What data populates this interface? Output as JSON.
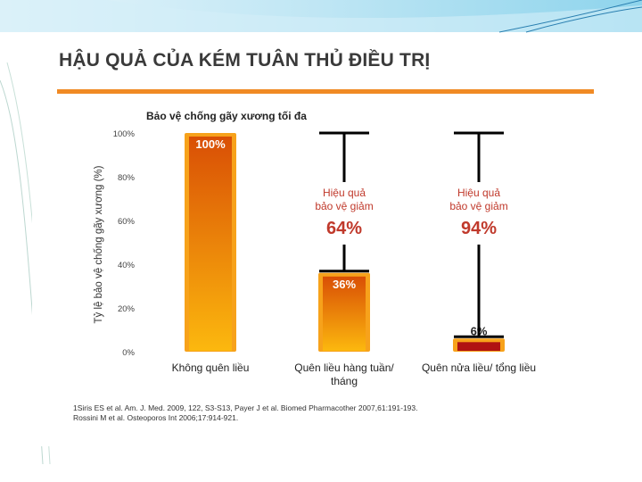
{
  "slide": {
    "title": "HẬU QUẢ CỦA KÉM TUÂN THỦ ĐIỀU TRỊ"
  },
  "chart_data": {
    "type": "bar",
    "title": "Bảo vệ chống gãy xương tối đa",
    "ylabel": "Tỷ lệ bảo vệ chống gãy xương (%)",
    "xlabel": "",
    "ylim": [
      0,
      100
    ],
    "yticks": [
      "0%",
      "20%",
      "40%",
      "60%",
      "80%",
      "100%"
    ],
    "categories": [
      "Không quên liều",
      "Quên liều hàng tuần/ tháng",
      "Quên nửa liều/ tổng liều"
    ],
    "values": [
      100,
      36,
      6
    ],
    "data_labels": [
      "100%",
      "36%",
      "6%"
    ],
    "grid": false,
    "legend": "none",
    "annotations": [
      {
        "category": "Quên liều hàng tuần/ tháng",
        "text_line1": "Hiệu quả",
        "text_line2": "bảo vệ giảm",
        "value_label": "64%",
        "reduction": 64
      },
      {
        "category": "Quên nửa liều/ tổng liều",
        "text_line1": "Hiệu quả",
        "text_line2": "bảo vệ giảm",
        "value_label": "94%",
        "reduction": 94
      }
    ],
    "colors": {
      "bar_top": "#d94f05",
      "bar_bottom": "#fcb80e",
      "bar_border": "#f7a21b",
      "third_bar_fill": "#b01212",
      "annotation_text": "#c0392b",
      "reduction_value": "#c0392b",
      "bracket": "#000000"
    }
  },
  "references": [
    "1Siris ES et al. Am. J. Med. 2009, 122, S3-S13, Payer J et al. Biomed Pharmacother 2007,61:191-193.",
    "Rossini M et al. Osteoporos Int 2006;17:914-921."
  ]
}
